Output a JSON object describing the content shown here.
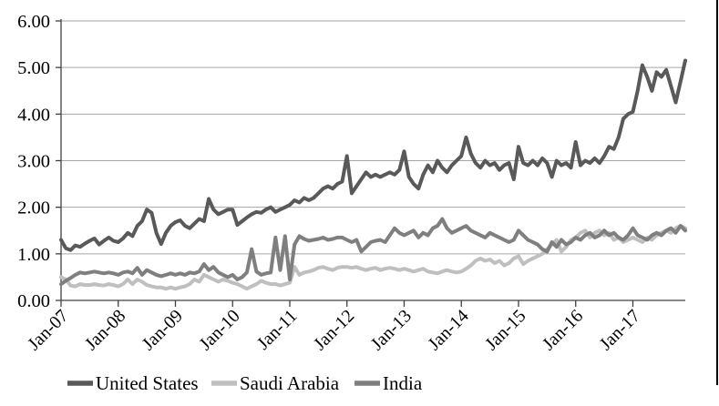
{
  "chart_data": {
    "type": "line",
    "title": "",
    "xlabel": "",
    "ylabel": "",
    "x_unit": "month",
    "x_start": "Jan-07",
    "x_end": "Dec-17",
    "x_tick_labels": [
      "Jan-07",
      "Jan-08",
      "Jan-09",
      "Jan-10",
      "Jan-11",
      "Jan-12",
      "Jan-13",
      "Jan-14",
      "Jan-15",
      "Jan-16",
      "Jan-17"
    ],
    "y_ticks": [
      "0.00",
      "1.00",
      "2.00",
      "3.00",
      "4.00",
      "5.00",
      "6.00"
    ],
    "ylim": [
      0,
      6
    ],
    "grid": "horizontal",
    "legend_position": "bottom",
    "colors": {
      "gridline": "#a6a6a6",
      "axis": "#404040",
      "text": "#000000",
      "page_border": "#000000"
    },
    "series": [
      {
        "name": "United States",
        "color": "#595959",
        "values": [
          1.3,
          1.12,
          1.08,
          1.18,
          1.15,
          1.22,
          1.28,
          1.33,
          1.2,
          1.28,
          1.35,
          1.28,
          1.25,
          1.33,
          1.45,
          1.38,
          1.6,
          1.7,
          1.95,
          1.88,
          1.45,
          1.21,
          1.45,
          1.6,
          1.68,
          1.72,
          1.6,
          1.55,
          1.65,
          1.75,
          1.7,
          2.18,
          1.95,
          1.85,
          1.9,
          1.95,
          1.95,
          1.62,
          1.7,
          1.78,
          1.85,
          1.9,
          1.88,
          1.95,
          2.0,
          1.9,
          1.95,
          2.0,
          2.05,
          2.15,
          2.1,
          2.2,
          2.15,
          2.2,
          2.3,
          2.4,
          2.45,
          2.4,
          2.5,
          2.55,
          3.1,
          2.3,
          2.45,
          2.6,
          2.75,
          2.65,
          2.7,
          2.65,
          2.7,
          2.75,
          2.7,
          2.8,
          3.2,
          2.65,
          2.5,
          2.4,
          2.7,
          2.9,
          2.75,
          3.0,
          2.85,
          2.75,
          2.9,
          3.0,
          3.1,
          3.5,
          3.15,
          2.95,
          2.85,
          3.0,
          2.9,
          2.95,
          2.8,
          2.9,
          2.95,
          2.6,
          3.3,
          2.95,
          2.9,
          3.0,
          2.9,
          3.05,
          2.95,
          2.65,
          3.0,
          2.9,
          2.95,
          2.85,
          3.4,
          2.9,
          3.0,
          2.95,
          3.05,
          2.95,
          3.1,
          3.3,
          3.25,
          3.5,
          3.9,
          4.0,
          4.05,
          4.5,
          5.05,
          4.8,
          4.5,
          4.9,
          4.8,
          4.95,
          4.6,
          4.25,
          4.7,
          5.15
        ]
      },
      {
        "name": "Saudi Arabia",
        "color": "#bfbfbf",
        "values": [
          0.5,
          0.45,
          0.32,
          0.3,
          0.35,
          0.33,
          0.33,
          0.35,
          0.33,
          0.32,
          0.35,
          0.33,
          0.3,
          0.35,
          0.45,
          0.35,
          0.45,
          0.4,
          0.33,
          0.3,
          0.28,
          0.28,
          0.25,
          0.28,
          0.25,
          0.28,
          0.3,
          0.35,
          0.45,
          0.4,
          0.55,
          0.5,
          0.45,
          0.4,
          0.45,
          0.42,
          0.38,
          0.35,
          0.3,
          0.25,
          0.3,
          0.35,
          0.42,
          0.38,
          0.35,
          0.35,
          0.32,
          0.35,
          0.38,
          0.72,
          0.55,
          0.6,
          0.62,
          0.65,
          0.7,
          0.72,
          0.68,
          0.65,
          0.7,
          0.72,
          0.72,
          0.7,
          0.72,
          0.68,
          0.65,
          0.68,
          0.7,
          0.65,
          0.68,
          0.7,
          0.68,
          0.65,
          0.68,
          0.65,
          0.62,
          0.65,
          0.68,
          0.62,
          0.6,
          0.58,
          0.62,
          0.65,
          0.62,
          0.6,
          0.62,
          0.68,
          0.75,
          0.85,
          0.9,
          0.85,
          0.88,
          0.8,
          0.85,
          0.75,
          0.8,
          0.9,
          0.95,
          0.78,
          0.85,
          0.9,
          0.95,
          1.0,
          1.1,
          1.2,
          1.3,
          1.05,
          1.15,
          1.3,
          1.35,
          1.45,
          1.5,
          1.35,
          1.45,
          1.5,
          1.4,
          1.45,
          1.3,
          1.35,
          1.25,
          1.3,
          1.35,
          1.3,
          1.25,
          1.35,
          1.3,
          1.4,
          1.45,
          1.5,
          1.45,
          1.55,
          1.6,
          1.55
        ]
      },
      {
        "name": "India",
        "color": "#7f7f7f",
        "values": [
          0.35,
          0.42,
          0.48,
          0.55,
          0.6,
          0.58,
          0.6,
          0.62,
          0.6,
          0.58,
          0.6,
          0.58,
          0.55,
          0.6,
          0.62,
          0.58,
          0.7,
          0.55,
          0.65,
          0.6,
          0.55,
          0.52,
          0.55,
          0.58,
          0.55,
          0.58,
          0.55,
          0.6,
          0.58,
          0.62,
          0.78,
          0.65,
          0.72,
          0.6,
          0.55,
          0.5,
          0.55,
          0.45,
          0.5,
          0.6,
          1.1,
          0.62,
          0.55,
          0.58,
          0.6,
          1.35,
          0.65,
          1.38,
          0.45,
          1.2,
          1.38,
          1.32,
          1.28,
          1.3,
          1.32,
          1.35,
          1.3,
          1.32,
          1.35,
          1.35,
          1.3,
          1.25,
          1.3,
          1.05,
          1.15,
          1.25,
          1.28,
          1.3,
          1.25,
          1.4,
          1.55,
          1.45,
          1.4,
          1.45,
          1.5,
          1.35,
          1.45,
          1.4,
          1.55,
          1.6,
          1.75,
          1.55,
          1.45,
          1.5,
          1.55,
          1.6,
          1.5,
          1.45,
          1.4,
          1.35,
          1.45,
          1.4,
          1.35,
          1.3,
          1.25,
          1.3,
          1.5,
          1.4,
          1.3,
          1.25,
          1.2,
          1.1,
          1.05,
          1.25,
          1.15,
          1.3,
          1.2,
          1.25,
          1.35,
          1.3,
          1.4,
          1.45,
          1.35,
          1.4,
          1.5,
          1.4,
          1.45,
          1.35,
          1.3,
          1.4,
          1.55,
          1.4,
          1.35,
          1.3,
          1.4,
          1.45,
          1.4,
          1.5,
          1.55,
          1.45,
          1.6,
          1.5
        ]
      }
    ]
  }
}
